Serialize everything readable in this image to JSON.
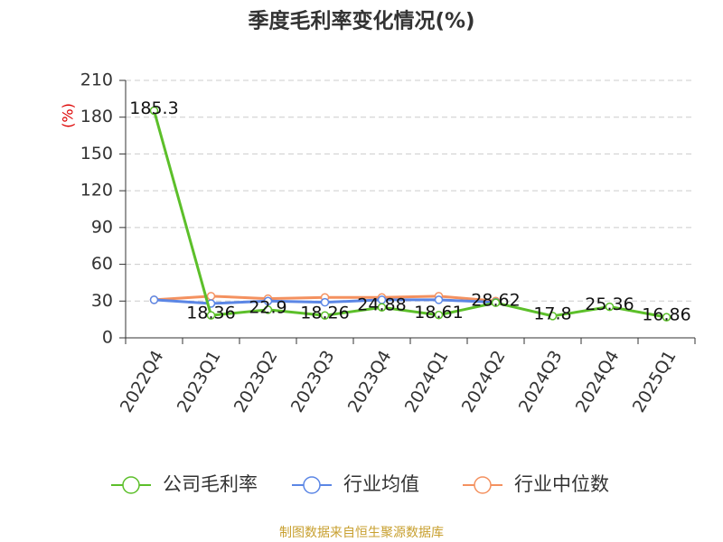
{
  "chart_data": {
    "type": "line",
    "title": "季度毛利率变化情况(%)",
    "y_label": "(%)",
    "categories": [
      "2022Q4",
      "2023Q1",
      "2023Q2",
      "2023Q3",
      "2023Q4",
      "2024Q1",
      "2024Q2",
      "2024Q3",
      "2024Q4",
      "2025Q1"
    ],
    "series": [
      {
        "name": "公司毛利率",
        "color": "#5cbf2a",
        "values": [
          185.3,
          18.36,
          22.9,
          18.26,
          24.88,
          18.61,
          28.62,
          17.8,
          25.36,
          16.86
        ],
        "show_labels": true
      },
      {
        "name": "行业均值",
        "color": "#5b86e5",
        "values": [
          31,
          28,
          30,
          29,
          31,
          31,
          29,
          null,
          null,
          null
        ]
      },
      {
        "name": "行业中位数",
        "color": "#f4915f",
        "values": [
          31,
          34,
          32,
          33,
          33,
          34,
          30,
          null,
          null,
          null
        ]
      }
    ],
    "ylim": [
      0,
      210
    ],
    "yticks": [
      0,
      30,
      60,
      90,
      120,
      150,
      180,
      210
    ],
    "grid": true,
    "source": "制图数据来自恒生聚源数据库"
  }
}
